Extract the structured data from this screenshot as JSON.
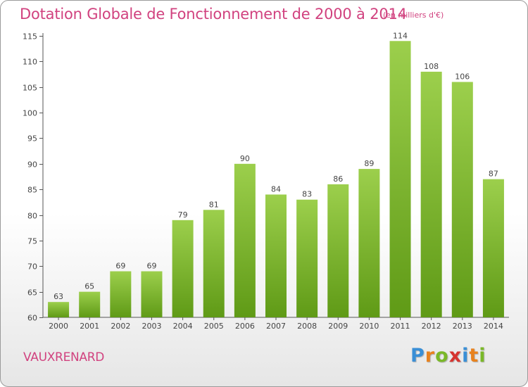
{
  "header": {
    "title": "Dotation Globale de Fonctionnement de 2000 à 2014",
    "subtitle": "(en milliers d'€)"
  },
  "footer": {
    "commune": "VAUXRENARD",
    "logo_letters": [
      "P",
      "r",
      "o",
      "x",
      "i",
      "t",
      "i"
    ],
    "logo_colors": [
      "#3a8fd6",
      "#e8821e",
      "#7ab828",
      "#d6332f",
      "#3a8fd6",
      "#e8821e",
      "#7ab828"
    ]
  },
  "chart_data": {
    "type": "bar",
    "categories": [
      "2000",
      "2001",
      "2002",
      "2003",
      "2004",
      "2005",
      "2006",
      "2007",
      "2008",
      "2009",
      "2010",
      "2011",
      "2012",
      "2013",
      "2014"
    ],
    "values": [
      63,
      65,
      69,
      69,
      79,
      81,
      90,
      84,
      83,
      86,
      89,
      114,
      108,
      106,
      87
    ],
    "title": "Dotation Globale de Fonctionnement de 2000 à 2014",
    "subtitle": "(en milliers d'€)",
    "ylim": [
      60,
      115
    ],
    "yticks": [
      60,
      65,
      70,
      75,
      80,
      85,
      90,
      95,
      100,
      105,
      110,
      115
    ],
    "grid": false,
    "bar_color_top": "#9ccf4c",
    "bar_color_bottom": "#5f9a16"
  }
}
